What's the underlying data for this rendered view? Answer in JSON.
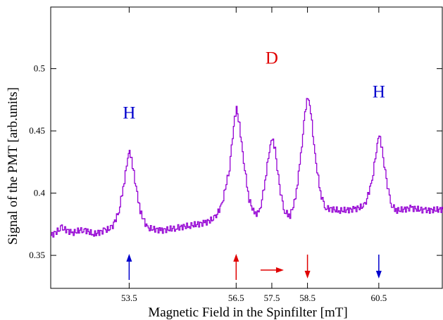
{
  "chart_data": {
    "type": "line",
    "xlabel": "Magnetic Field in the Spinfilter [mT]",
    "ylabel": "Signal of the PMT [arb.units]",
    "xlim": [
      51.3,
      62.3
    ],
    "ylim": [
      0.3235,
      0.5495
    ],
    "x_ticks": [
      53.5,
      56.5,
      57.5,
      58.5,
      60.5
    ],
    "y_ticks": [
      0.35,
      0.4,
      0.45,
      0.5
    ],
    "grid": false,
    "series": [
      {
        "color": "#9400d3",
        "points": [
          [
            51.3,
            0.366
          ],
          [
            51.6,
            0.372
          ],
          [
            51.9,
            0.368
          ],
          [
            52.2,
            0.371
          ],
          [
            52.5,
            0.367
          ],
          [
            52.8,
            0.37
          ],
          [
            53.0,
            0.372
          ],
          [
            53.2,
            0.385
          ],
          [
            53.35,
            0.41
          ],
          [
            53.45,
            0.428
          ],
          [
            53.5,
            0.432
          ],
          [
            53.55,
            0.428
          ],
          [
            53.65,
            0.41
          ],
          [
            53.8,
            0.385
          ],
          [
            54.0,
            0.372
          ],
          [
            54.4,
            0.37
          ],
          [
            54.8,
            0.372
          ],
          [
            55.2,
            0.374
          ],
          [
            55.6,
            0.376
          ],
          [
            55.9,
            0.38
          ],
          [
            56.1,
            0.392
          ],
          [
            56.3,
            0.42
          ],
          [
            56.42,
            0.455
          ],
          [
            56.5,
            0.468
          ],
          [
            56.58,
            0.455
          ],
          [
            56.7,
            0.425
          ],
          [
            56.85,
            0.395
          ],
          [
            57.0,
            0.383
          ],
          [
            57.15,
            0.385
          ],
          [
            57.3,
            0.41
          ],
          [
            57.42,
            0.435
          ],
          [
            57.5,
            0.444
          ],
          [
            57.58,
            0.435
          ],
          [
            57.7,
            0.405
          ],
          [
            57.85,
            0.385
          ],
          [
            58.0,
            0.382
          ],
          [
            58.15,
            0.395
          ],
          [
            58.3,
            0.43
          ],
          [
            58.42,
            0.465
          ],
          [
            58.5,
            0.478
          ],
          [
            58.58,
            0.465
          ],
          [
            58.7,
            0.43
          ],
          [
            58.85,
            0.4
          ],
          [
            59.0,
            0.388
          ],
          [
            59.4,
            0.386
          ],
          [
            59.8,
            0.387
          ],
          [
            60.1,
            0.39
          ],
          [
            60.3,
            0.41
          ],
          [
            60.42,
            0.435
          ],
          [
            60.5,
            0.447
          ],
          [
            60.58,
            0.435
          ],
          [
            60.7,
            0.41
          ],
          [
            60.85,
            0.39
          ],
          [
            61.0,
            0.386
          ],
          [
            61.4,
            0.388
          ],
          [
            61.8,
            0.386
          ],
          [
            62.3,
            0.387
          ]
        ]
      }
    ],
    "peak_labels": [
      {
        "text": "H",
        "x": 53.5,
        "y": 0.46,
        "color": "#0000cd"
      },
      {
        "text": "D",
        "x": 57.5,
        "y": 0.504,
        "color": "#e00000"
      },
      {
        "text": "H",
        "x": 60.5,
        "y": 0.477,
        "color": "#0000cd"
      }
    ],
    "arrows": [
      {
        "x": 53.5,
        "direction": "up",
        "color": "#0000cd"
      },
      {
        "x": 56.5,
        "direction": "up",
        "color": "#e00000"
      },
      {
        "x": 57.5,
        "direction": "right",
        "color": "#e00000"
      },
      {
        "x": 58.5,
        "direction": "down",
        "color": "#e00000"
      },
      {
        "x": 60.5,
        "direction": "down",
        "color": "#0000cd"
      }
    ]
  }
}
